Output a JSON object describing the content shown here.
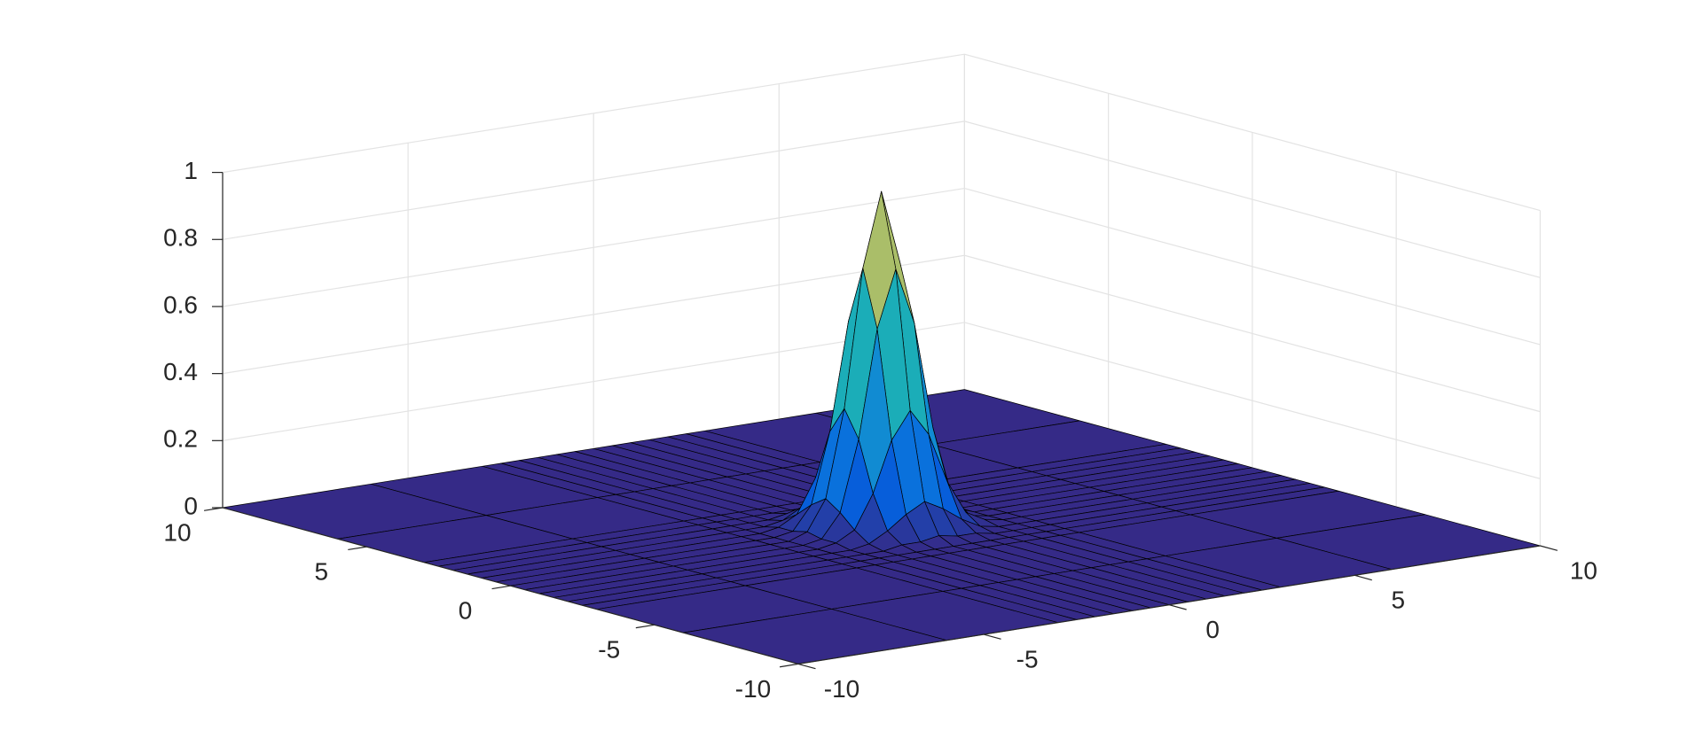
{
  "chart_data": {
    "type": "surface",
    "colormap": "parula",
    "grid": true,
    "x": [
      -10,
      -6,
      -3,
      -2.5,
      -2,
      -1.5,
      -1,
      -0.5,
      0,
      0.5,
      1,
      1.5,
      2,
      2.5,
      3,
      6,
      10
    ],
    "y": [
      -10,
      -6,
      -3,
      -2.5,
      -2,
      -1.5,
      -1,
      -0.5,
      0,
      0.5,
      1,
      1.5,
      2,
      2.5,
      3,
      6,
      10
    ],
    "z": [
      [
        0,
        0,
        0,
        0,
        0,
        0,
        0,
        0,
        0,
        0,
        0,
        0,
        0,
        0,
        0,
        0,
        0
      ],
      [
        0,
        0,
        0,
        0,
        0,
        0,
        0,
        0,
        0,
        0,
        0,
        0,
        0,
        0,
        0,
        0,
        0
      ],
      [
        0,
        0,
        0,
        0,
        0,
        0,
        0,
        0,
        0,
        0,
        0,
        0,
        0,
        0,
        0,
        0,
        0
      ],
      [
        0,
        0,
        0,
        0,
        0,
        0,
        0,
        0,
        0,
        0,
        0,
        0,
        0,
        0,
        0,
        0,
        0
      ],
      [
        0,
        0,
        0,
        0,
        0,
        0,
        0.01,
        0.01,
        0.02,
        0.01,
        0.01,
        0,
        0,
        0,
        0,
        0,
        0
      ],
      [
        0,
        0,
        0,
        0,
        0,
        0.01,
        0.04,
        0.08,
        0.11,
        0.08,
        0.04,
        0.01,
        0,
        0,
        0,
        0,
        0
      ],
      [
        0,
        0,
        0,
        0,
        0.01,
        0.04,
        0.14,
        0.29,
        0.37,
        0.29,
        0.14,
        0.04,
        0.01,
        0,
        0,
        0,
        0
      ],
      [
        0,
        0,
        0,
        0,
        0.01,
        0.08,
        0.29,
        0.61,
        0.78,
        0.61,
        0.29,
        0.08,
        0.01,
        0,
        0,
        0,
        0
      ],
      [
        0,
        0,
        0,
        0,
        0.02,
        0.11,
        0.37,
        0.78,
        1,
        0.78,
        0.37,
        0.11,
        0.02,
        0,
        0,
        0,
        0
      ],
      [
        0,
        0,
        0,
        0,
        0.01,
        0.08,
        0.29,
        0.61,
        0.78,
        0.61,
        0.29,
        0.08,
        0.01,
        0,
        0,
        0,
        0
      ],
      [
        0,
        0,
        0,
        0,
        0.01,
        0.04,
        0.14,
        0.29,
        0.37,
        0.29,
        0.14,
        0.04,
        0.01,
        0,
        0,
        0,
        0
      ],
      [
        0,
        0,
        0,
        0,
        0,
        0.01,
        0.04,
        0.08,
        0.11,
        0.08,
        0.04,
        0.01,
        0,
        0,
        0,
        0,
        0
      ],
      [
        0,
        0,
        0,
        0,
        0,
        0,
        0.01,
        0.01,
        0.02,
        0.01,
        0.01,
        0,
        0,
        0,
        0,
        0,
        0
      ],
      [
        0,
        0,
        0,
        0,
        0,
        0,
        0,
        0,
        0,
        0,
        0,
        0,
        0,
        0,
        0,
        0,
        0
      ],
      [
        0,
        0,
        0,
        0,
        0,
        0,
        0,
        0,
        0,
        0,
        0,
        0,
        0,
        0,
        0,
        0,
        0
      ],
      [
        0,
        0,
        0,
        0,
        0,
        0,
        0,
        0,
        0,
        0,
        0,
        0,
        0,
        0,
        0,
        0,
        0
      ],
      [
        0,
        0,
        0,
        0,
        0,
        0,
        0,
        0,
        0,
        0,
        0,
        0,
        0,
        0,
        0,
        0,
        0
      ]
    ],
    "xlim": [
      -10,
      10
    ],
    "ylim": [
      -10,
      10
    ],
    "zlim": [
      0,
      1
    ],
    "xticks": [
      -10,
      -5,
      0,
      5,
      10
    ],
    "yticks": [
      -10,
      -5,
      0,
      5,
      10
    ],
    "zticks": [
      0,
      0.2,
      0.4,
      0.6,
      0.8,
      1
    ]
  }
}
